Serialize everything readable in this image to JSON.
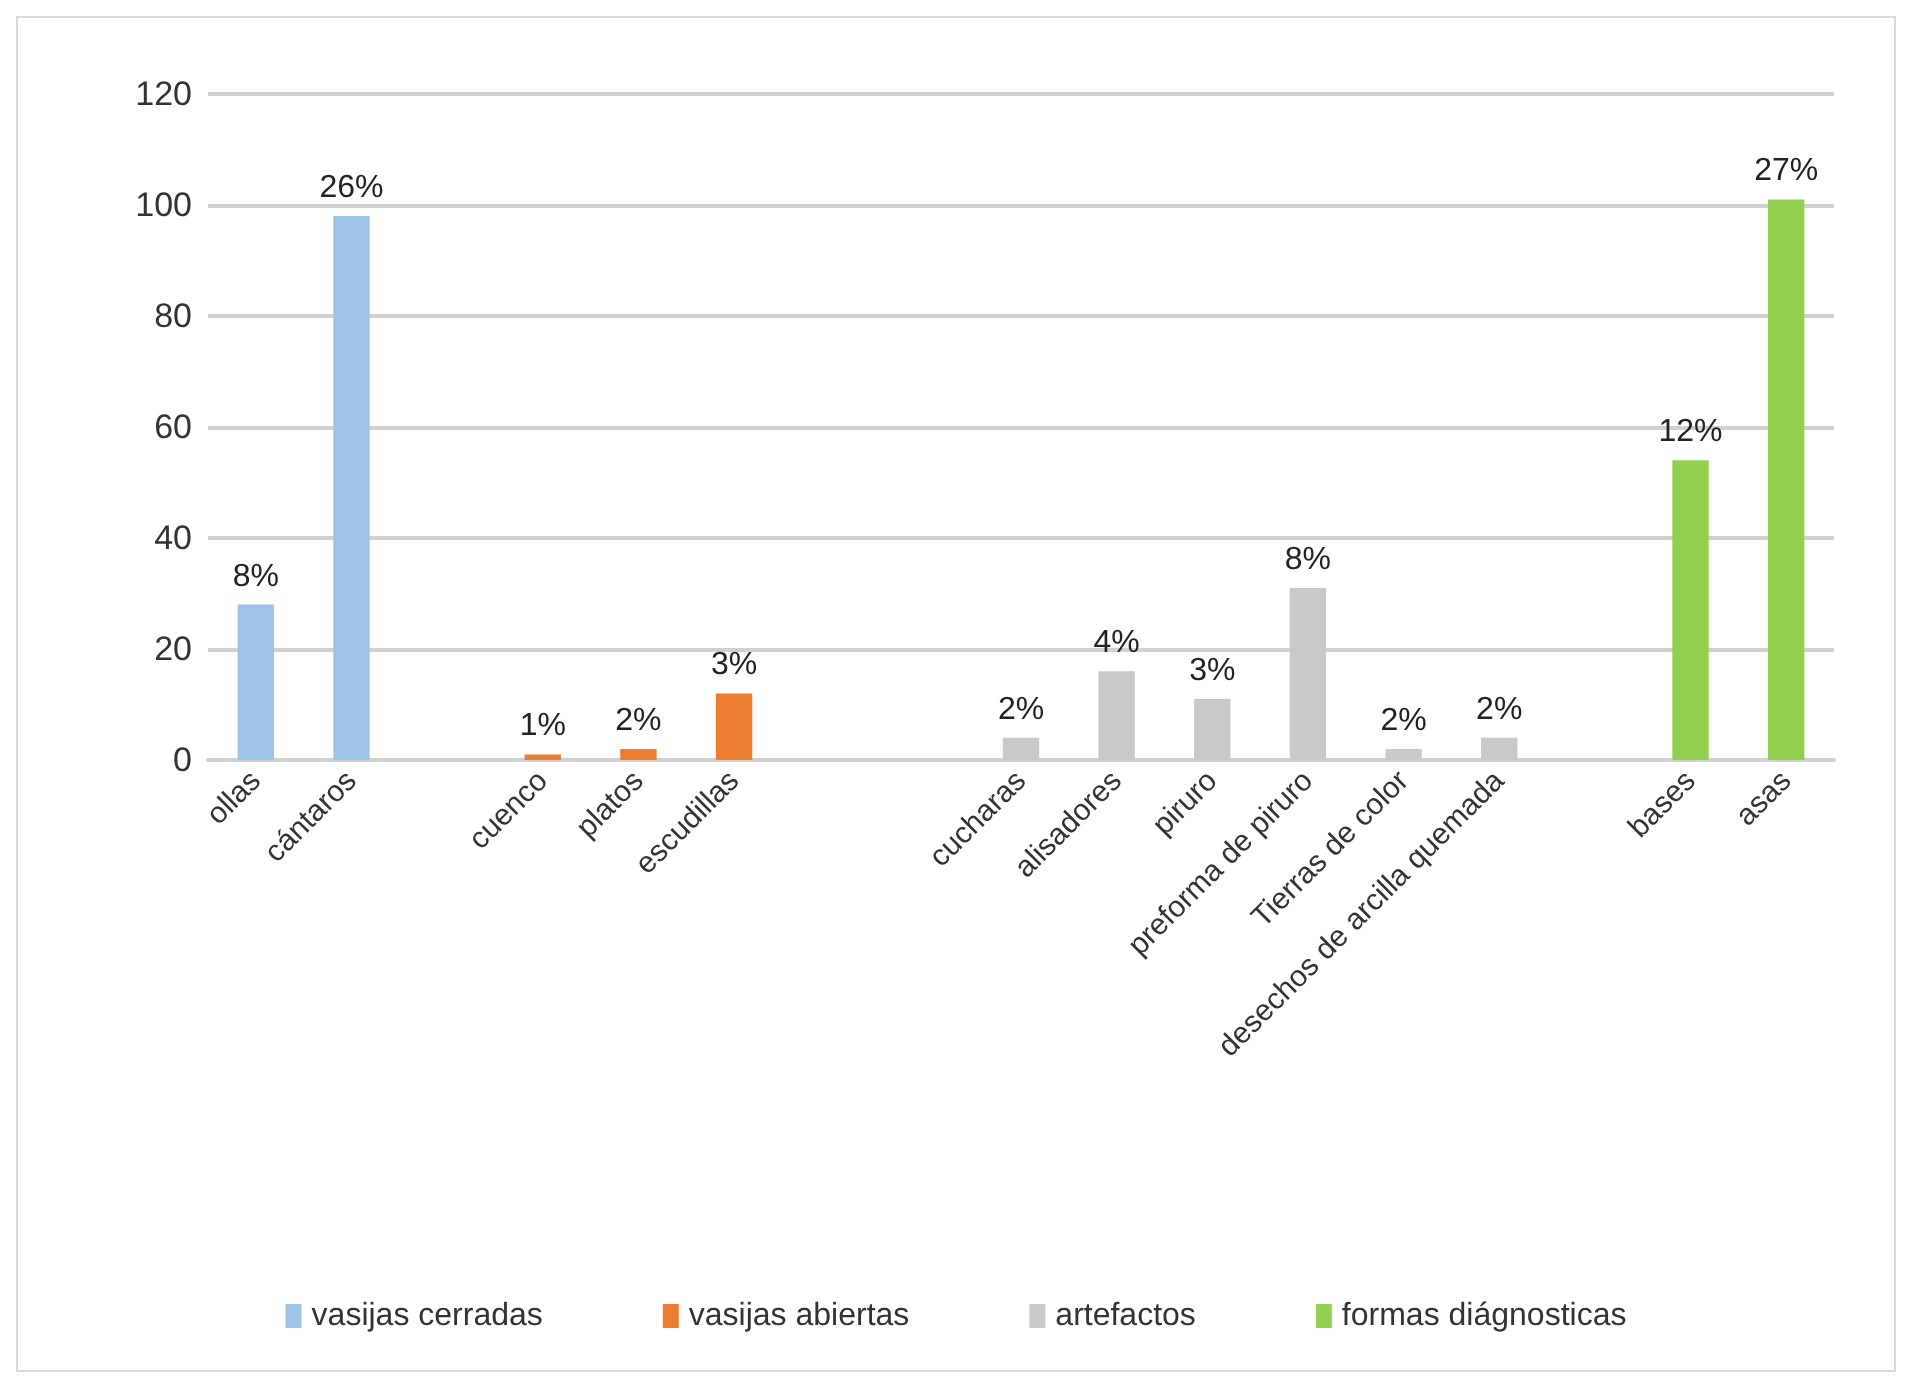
{
  "chart_data": {
    "type": "bar",
    "stacked": true,
    "categories": [
      "ollas",
      "cántaros",
      null,
      "cuenco",
      "platos",
      "escudillas",
      null,
      null,
      "cucharas",
      "alisadores",
      "piruro",
      "preforma de piruro",
      "Tierras de color",
      "desechos de arcilla quemada",
      null,
      "bases",
      "asas"
    ],
    "series": [
      {
        "name": "vasijas cerradas",
        "color": "#9dc3e6",
        "values": [
          28,
          98,
          null,
          null,
          null,
          null,
          null,
          null,
          null,
          null,
          null,
          null,
          null,
          null,
          null,
          null,
          null
        ]
      },
      {
        "name": "vasijas abiertas",
        "color": "#ed7d31",
        "values": [
          null,
          null,
          null,
          1,
          2,
          12,
          null,
          null,
          null,
          null,
          null,
          null,
          null,
          null,
          null,
          null,
          null
        ]
      },
      {
        "name": "artefactos",
        "color": "#c9c9c9",
        "values": [
          null,
          null,
          null,
          null,
          null,
          null,
          null,
          null,
          4,
          16,
          11,
          31,
          2,
          4,
          null,
          null,
          null
        ]
      },
      {
        "name": "formas diágnosticas",
        "color": "#92d050",
        "values": [
          null,
          null,
          null,
          null,
          null,
          null,
          null,
          null,
          null,
          null,
          null,
          null,
          null,
          null,
          null,
          54,
          101
        ]
      }
    ],
    "annotations": [
      {
        "text": "8%",
        "x": "ollas",
        "y": 28
      },
      {
        "text": "26%",
        "x": "cántaros",
        "y": 98
      },
      {
        "text": "1%",
        "x": "cuenco",
        "y": 1
      },
      {
        "text": "2%",
        "x": "platos",
        "y": 2
      },
      {
        "text": "3%",
        "x": "escudillas",
        "y": 12
      },
      {
        "text": "2%",
        "x": "cucharas",
        "y": 4
      },
      {
        "text": "4%",
        "x": "alisadores",
        "y": 16
      },
      {
        "text": "3%",
        "x": "piruro",
        "y": 11
      },
      {
        "text": "8%",
        "x": "preforma de piruro",
        "y": 31
      },
      {
        "text": "2%",
        "x": "Tierras de color",
        "y": 2
      },
      {
        "text": "2%",
        "x": "desechos de arcilla quemada",
        "y": 4
      },
      {
        "text": "12%",
        "x": "bases",
        "y": 54
      },
      {
        "text": "27%",
        "x": "asas",
        "y": 101
      }
    ],
    "ylim": [
      0,
      120
    ],
    "yticks": [
      0,
      20,
      40,
      60,
      80,
      100,
      120
    ],
    "grid": "y",
    "legend": "bottom"
  }
}
